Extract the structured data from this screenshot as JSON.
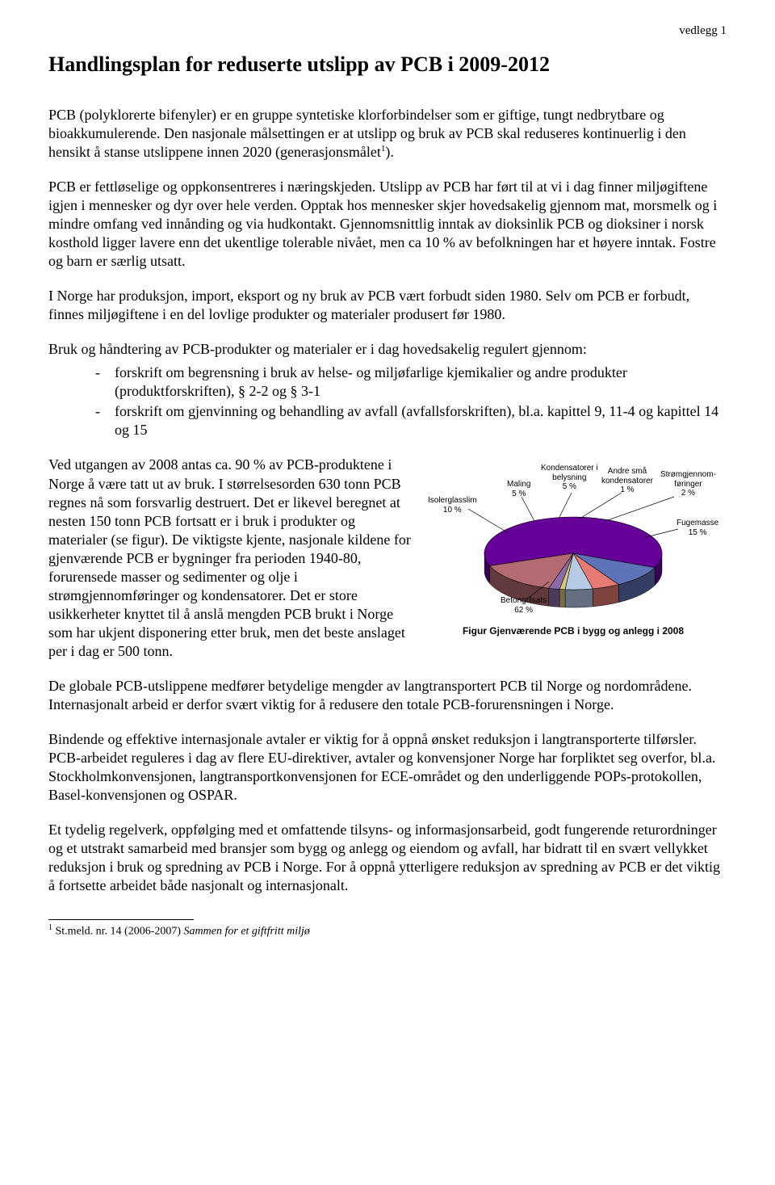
{
  "header_right": "vedlegg 1",
  "title": "Handlingsplan for reduserte utslipp av PCB i 2009-2012",
  "p1a": "PCB (polyklorerte bifenyler) er en gruppe syntetiske klorforbindelser som er giftige, tungt nedbrytbare og bioakkumulerende. Den nasjonale målsettingen er at utslipp og bruk av PCB skal reduseres kontinuerlig i den hensikt å stanse utslippene innen 2020 (generasjonsmålet",
  "p1b": ").",
  "p2": "PCB er fettløselige og oppkonsentreres i næringskjeden. Utslipp av PCB har ført til at vi i dag finner miljøgiftene igjen i mennesker og dyr over hele verden. Opptak hos mennesker skjer hovedsakelig gjennom mat, morsmelk og i mindre omfang ved innånding og via hudkontakt. Gjennomsnittlig inntak av dioksinlik PCB og dioksiner i norsk kosthold ligger lavere enn det ukentlige tolerable nivået, men ca 10 % av befolkningen har et høyere inntak. Fostre og barn er særlig utsatt.",
  "p3": "I Norge har produksjon, import, eksport og ny bruk av PCB vært forbudt siden 1980. Selv om PCB er forbudt, finnes miljøgiftene i en del lovlige produkter og materialer produsert før 1980.",
  "p4": "Bruk og håndtering av PCB-produkter og materialer er i dag hovedsakelig regulert gjennom:",
  "bullets": [
    "forskrift om begrensning i bruk av helse- og miljøfarlige kjemikalier og andre produkter (produktforskriften), § 2-2 og § 3-1",
    "forskrift om gjenvinning og behandling av avfall (avfallsforskriften), bl.a. kapittel 9, 11-4 og kapittel 14 og 15"
  ],
  "p5": "Ved utgangen av 2008 antas ca. 90 % av PCB-produktene i Norge å være tatt ut av bruk. I størrelsesorden 630 tonn PCB regnes nå som forsvarlig destruert. Det er likevel beregnet at nesten 150 tonn PCB fortsatt er i bruk i produkter og materialer (se figur). De viktigste kjente, nasjonale kildene for gjenværende PCB er bygninger fra perioden 1940-80, forurensede masser og sedimenter og olje i strømgjennomføringer og kondensatorer. Det er store usikkerheter knyttet til å anslå mengden PCB brukt i Norge som har ukjent disponering etter bruk, men det beste anslaget per i dag er 500 tonn.",
  "p6": "De globale PCB-utslippene medfører betydelige mengder av langtransportert PCB til Norge og nordområdene. Internasjonalt arbeid er derfor svært viktig for å redusere den totale PCB-forurensningen i Norge.",
  "p7": "Bindende og effektive internasjonale avtaler er viktig for å oppnå ønsket reduksjon i langtransporterte tilførsler. PCB-arbeidet reguleres i dag av flere EU-direktiver, avtaler og konvensjoner Norge har forpliktet seg overfor, bl.a. Stockholmkonvensjonen, langtransportkonvensjonen for ECE-området og den underliggende POPs-protokollen, Basel-konvensjonen og OSPAR.",
  "p8": "Et tydelig regelverk, oppfølging med et omfattende tilsyns- og informasjonsarbeid, godt fungerende returordninger og et utstrakt samarbeid med bransjer som bygg og anlegg og eiendom og avfall, har bidratt til en svært vellykket reduksjon i bruk og spredning av PCB i Norge. For å oppnå ytterligere reduksjon av spredning av PCB er det viktig å fortsette arbeidet både nasjonalt og internasjonalt.",
  "footnote_marker": "1",
  "footnote_text_a": " St.meld. nr. 14 (2006-2007) ",
  "footnote_text_b": "Sammen for et giftfritt miljø",
  "chart": {
    "type": "pie-3d",
    "background_color": "#ffffff",
    "caption": "Figur  Gjenværende PCB  i bygg og anlegg i 2008",
    "caption_fontsize": 12,
    "label_fontsize": 10,
    "border_color": "#000000",
    "slices": [
      {
        "name": "Betongtilsats",
        "label_l1": "Betongtilsats",
        "label_l2": "62 %",
        "value": 62,
        "color": "#660099"
      },
      {
        "name": "Isolerglasslim",
        "label_l1": "Isolerglasslim",
        "label_l2": "10 %",
        "value": 10,
        "color": "#5e72b8"
      },
      {
        "name": "Maling",
        "label_l1": "Maling",
        "label_l2": "5 %",
        "value": 5,
        "color": "#e87a74"
      },
      {
        "name": "Kondensatorer i belysning",
        "label_l1": "Kondensatorer i",
        "label_l2": "belysning",
        "label_l3": "5 %",
        "value": 5,
        "color": "#b7cbe7"
      },
      {
        "name": "Andre små kondensatorer",
        "label_l1": "Andre små",
        "label_l2": "kondensatorer",
        "label_l3": "1 %",
        "value": 1,
        "color": "#d9c87a"
      },
      {
        "name": "Strømgjennomføringer",
        "label_l1": "Strømgjennom-",
        "label_l2": "føringer",
        "label_l3": "2 %",
        "value": 2,
        "color": "#8a6aa8"
      },
      {
        "name": "Fugemasse",
        "label_l1": "Fugemasse",
        "label_l2": "15 %",
        "value": 15,
        "color": "#b36a70"
      }
    ]
  }
}
